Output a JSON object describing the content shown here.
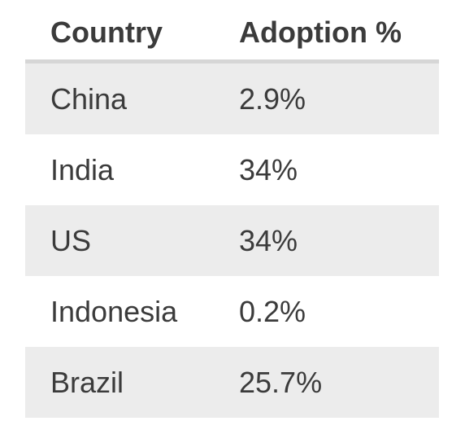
{
  "table": {
    "headers": {
      "country": "Country",
      "adoption": "Adoption %"
    },
    "rows": [
      {
        "country": "China",
        "adoption": "2.9%"
      },
      {
        "country": "India",
        "adoption": "34%"
      },
      {
        "country": "US",
        "adoption": "34%"
      },
      {
        "country": "Indonesia",
        "adoption": "0.2%"
      },
      {
        "country": "Brazil",
        "adoption": "25.7%"
      }
    ],
    "colors": {
      "shaded_row": "#ececec",
      "header_rule": "#d6d6d6",
      "text": "#3b3b3b"
    }
  }
}
